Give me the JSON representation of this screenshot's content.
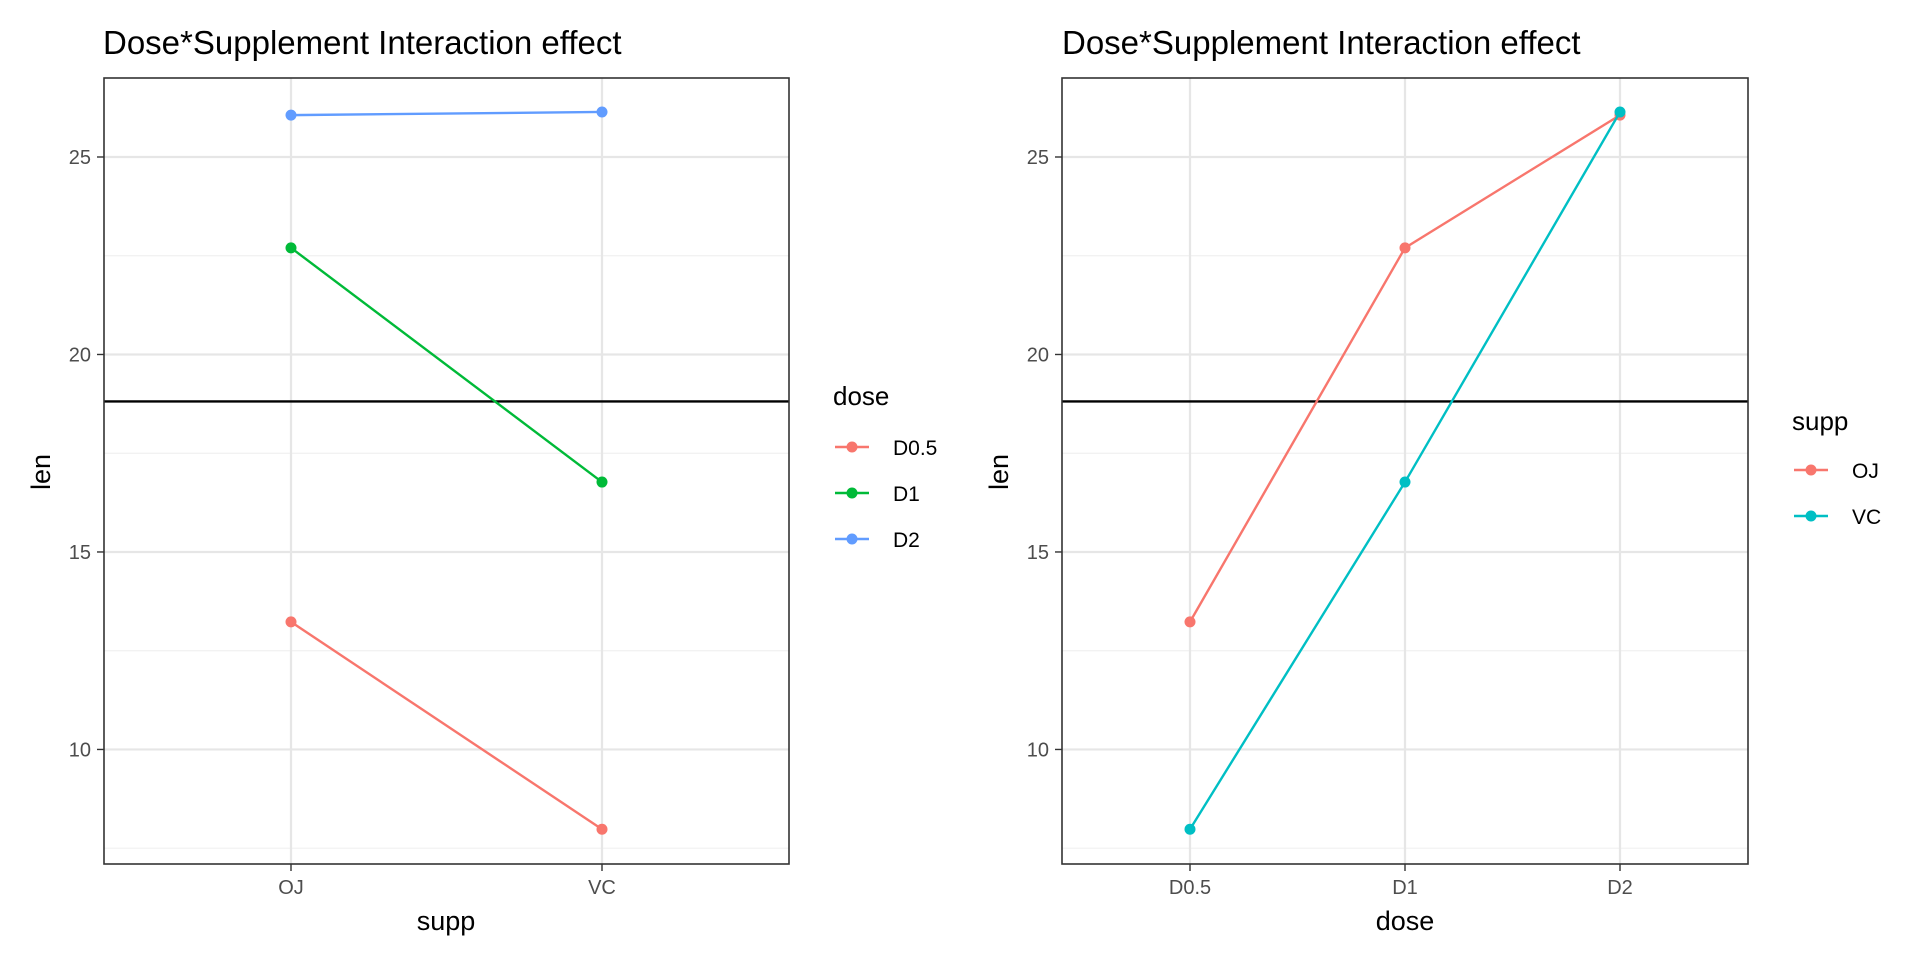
{
  "chart_data": [
    {
      "type": "line",
      "title": "Dose*Supplement Interaction effect",
      "xlabel": "supp",
      "ylabel": "len",
      "categories": [
        "OJ",
        "VC"
      ],
      "ylim": [
        7.1,
        27.0
      ],
      "yticks": [
        10,
        15,
        20,
        25
      ],
      "hline": 18.81,
      "hline_color": "#000000",
      "legend": {
        "title": "dose",
        "position": "right"
      },
      "series": [
        {
          "name": "D0.5",
          "color": "#F8766D",
          "values": [
            13.23,
            7.98
          ]
        },
        {
          "name": "D1",
          "color": "#00BA38",
          "values": [
            22.7,
            16.77
          ]
        },
        {
          "name": "D2",
          "color": "#619CFF",
          "values": [
            26.06,
            26.14
          ]
        }
      ]
    },
    {
      "type": "line",
      "title": "Dose*Supplement Interaction effect",
      "xlabel": "dose",
      "ylabel": "len",
      "categories": [
        "D0.5",
        "D1",
        "D2"
      ],
      "ylim": [
        7.1,
        27.0
      ],
      "yticks": [
        10,
        15,
        20,
        25
      ],
      "hline": 18.81,
      "hline_color": "#000000",
      "legend": {
        "title": "supp",
        "position": "right"
      },
      "series": [
        {
          "name": "OJ",
          "color": "#F8766D",
          "values": [
            13.23,
            22.7,
            26.06
          ]
        },
        {
          "name": "VC",
          "color": "#00BFC4",
          "values": [
            7.98,
            16.77,
            26.14
          ]
        }
      ]
    }
  ]
}
